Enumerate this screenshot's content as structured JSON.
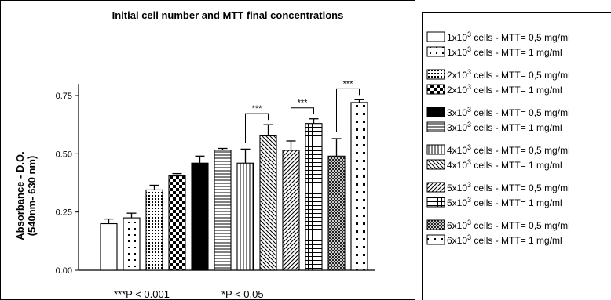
{
  "chart_data": {
    "type": "bar",
    "title": "Initial cell number and MTT final concentrations",
    "ylabel_line1": "Absorbance - D.O.",
    "ylabel_line2": "(540nm- 630 nm)",
    "xlabel": "",
    "ylim": [
      0,
      0.8
    ],
    "yticks": [
      0.0,
      0.25,
      0.5,
      0.75
    ],
    "ytick_labels": [
      "0.00",
      "0.25",
      "0.50",
      "0.75"
    ],
    "series": [
      {
        "cells": "1",
        "mtt": "0,5",
        "pattern": "empty",
        "value": 0.2,
        "error": 0.02
      },
      {
        "cells": "1",
        "mtt": "1",
        "pattern": "dots-sparse",
        "value": 0.225,
        "error": 0.02
      },
      {
        "cells": "2",
        "mtt": "0,5",
        "pattern": "dots-dense",
        "value": 0.345,
        "error": 0.02
      },
      {
        "cells": "2",
        "mtt": "1",
        "pattern": "checker",
        "value": 0.405,
        "error": 0.01
      },
      {
        "cells": "3",
        "mtt": "0,5",
        "pattern": "solid",
        "value": 0.46,
        "error": 0.03
      },
      {
        "cells": "3",
        "mtt": "1",
        "pattern": "hlines",
        "value": 0.515,
        "error": 0.008
      },
      {
        "cells": "4",
        "mtt": "0,5",
        "pattern": "vlines",
        "value": 0.46,
        "error": 0.06
      },
      {
        "cells": "4",
        "mtt": "1",
        "pattern": "diag-back",
        "value": 0.58,
        "error": 0.045
      },
      {
        "cells": "5",
        "mtt": "0,5",
        "pattern": "diag-fwd",
        "value": 0.515,
        "error": 0.04
      },
      {
        "cells": "5",
        "mtt": "1",
        "pattern": "grid",
        "value": 0.63,
        "error": 0.02
      },
      {
        "cells": "6",
        "mtt": "0,5",
        "pattern": "crosshatch",
        "value": 0.49,
        "error": 0.075
      },
      {
        "cells": "6",
        "mtt": "1",
        "pattern": "dots-big",
        "value": 0.72,
        "error": 0.012
      }
    ],
    "significance": [
      {
        "pair": [
          6,
          7
        ],
        "label": "***"
      },
      {
        "pair": [
          8,
          9
        ],
        "label": "***"
      },
      {
        "pair": [
          10,
          11
        ],
        "label": "***"
      }
    ],
    "footnotes": [
      "***P < 0.001",
      "*P < 0.05"
    ],
    "legend": {
      "placement": "right",
      "cells_prefix": "x10",
      "cells_exp": "3",
      "cells_suffix": " cells - ",
      "mtt_prefix": "MTT= ",
      "mtt_suffix": " mg/ml",
      "entries": [
        {
          "base": "1",
          "mtt": "0,5 mg/ml"
        },
        {
          "base": "1",
          "mtt": "1 mg/ml"
        },
        {
          "base": "2",
          "mtt": "0,5 mg/ml"
        },
        {
          "base": "2",
          "mtt": "1 mg/ml"
        },
        {
          "base": "3",
          "mtt": "0,5 mg/ml"
        },
        {
          "base": "3",
          "mtt": "1 mg/ml"
        },
        {
          "base": "4",
          "mtt": "0,5 mg/ml"
        },
        {
          "base": "4",
          "mtt": "1 mg/ml"
        },
        {
          "base": "5",
          "mtt": "0,5 mg/ml"
        },
        {
          "base": "5",
          "mtt": "1 mg/ml"
        },
        {
          "base": "6",
          "mtt": "0,5 mg/ml"
        },
        {
          "base": "6",
          "mtt": "1 mg/ml"
        }
      ]
    }
  }
}
